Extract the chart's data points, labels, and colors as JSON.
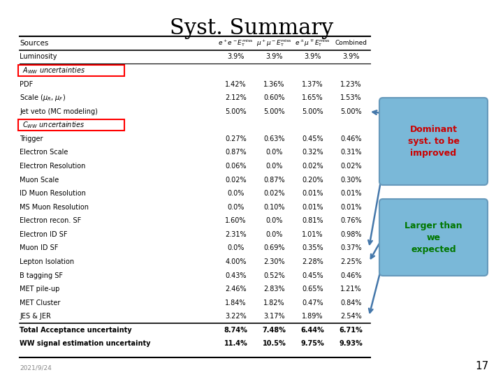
{
  "title": "Syst. Summary",
  "title_fontsize": 22,
  "background_color": "#ffffff",
  "header": [
    "Sources",
    "$e^+e^-E_\\mathrm{T}^\\mathrm{miss}$",
    "$\\mu^+\\mu^-E_\\mathrm{T}^\\mathrm{miss}$",
    "$e^\\pm\\mu^\\mp E_\\mathrm{T}^\\mathrm{miss}$",
    "Combined"
  ],
  "rows": [
    [
      "Luminosity",
      "3.9%",
      "3.9%",
      "3.9%",
      "3.9%"
    ],
    [
      "$A_{WW}$ uncertainties",
      "",
      "",
      "",
      ""
    ],
    [
      "PDF",
      "1.42%",
      "1.36%",
      "1.37%",
      "1.23%"
    ],
    [
      "Scale ($\\mu_R$, $\\mu_F$)",
      "2.12%",
      "0.60%",
      "1.65%",
      "1.53%"
    ],
    [
      "Jet veto (MC modeling)",
      "5.00%",
      "5.00%",
      "5.00%",
      "5.00%"
    ],
    [
      "$C_{WW}$ uncertainties",
      "",
      "",
      "",
      ""
    ],
    [
      "Trigger",
      "0.27%",
      "0.63%",
      "0.45%",
      "0.46%"
    ],
    [
      "Electron Scale",
      "0.87%",
      "0.0%",
      "0.32%",
      "0.31%"
    ],
    [
      "Electron Resolution",
      "0.06%",
      "0.0%",
      "0.02%",
      "0.02%"
    ],
    [
      "Muon Scale",
      "0.02%",
      "0.87%",
      "0.20%",
      "0.30%"
    ],
    [
      "ID Muon Resolution",
      "0.0%",
      "0.02%",
      "0.01%",
      "0.01%"
    ],
    [
      "MS Muon Resolution",
      "0.0%",
      "0.10%",
      "0.01%",
      "0.01%"
    ],
    [
      "Electron recon. SF",
      "1.60%",
      "0.0%",
      "0.81%",
      "0.76%"
    ],
    [
      "Electron ID SF",
      "2.31%",
      "0.0%",
      "1.01%",
      "0.98%"
    ],
    [
      "Muon ID SF",
      "0.0%",
      "0.69%",
      "0.35%",
      "0.37%"
    ],
    [
      "Lepton Isolation",
      "4.00%",
      "2.30%",
      "2.28%",
      "2.25%"
    ],
    [
      "B tagging SF",
      "0.43%",
      "0.52%",
      "0.45%",
      "0.46%"
    ],
    [
      "MET pile-up",
      "2.46%",
      "2.83%",
      "0.65%",
      "1.21%"
    ],
    [
      "MET Cluster",
      "1.84%",
      "1.82%",
      "0.47%",
      "0.84%"
    ],
    [
      "JES & JER",
      "3.22%",
      "3.17%",
      "1.89%",
      "2.54%"
    ],
    [
      "Total Acceptance uncertainty",
      "8.74%",
      "7.48%",
      "6.44%",
      "6.71%"
    ],
    [
      "WW signal estimation uncertainty",
      "11.4%",
      "10.5%",
      "9.75%",
      "9.93%"
    ]
  ],
  "section_rows": [
    1,
    5
  ],
  "bold_rows": [
    20,
    21
  ],
  "date_text": "2021/9/24",
  "page_number": "17",
  "annotation1_text": "Dominant\nsyst. to be\nimproved",
  "annotation1_color": "#cc0000",
  "annotation1_bg": "#7ab8d8",
  "annotation2_text": "Larger than\nwe\nexpected",
  "annotation2_color": "#007700",
  "annotation2_bg": "#7ab8d8",
  "arrow_color": "#4477aa"
}
